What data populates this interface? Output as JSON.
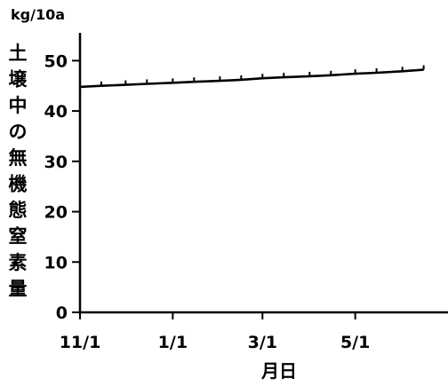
{
  "chart_data": {
    "type": "line",
    "title": "",
    "unit_label": "kg/10a",
    "xlabel": "月日",
    "ylabel": "土壌中の無機態窒素量",
    "x_ticks": [
      "11/1",
      "1/1",
      "3/1",
      "5/1"
    ],
    "y_ticks": [
      "0",
      "10",
      "20",
      "30",
      "40",
      "50"
    ],
    "ylim": [
      0,
      55
    ],
    "grid": false,
    "series": [
      {
        "x": [
          "11/1",
          "11/15",
          "12/1",
          "12/15",
          "1/1",
          "1/15",
          "2/1",
          "2/15",
          "3/1",
          "3/15",
          "4/1",
          "4/15",
          "5/1",
          "5/15",
          "6/1",
          "6/15"
        ],
        "values": [
          44.8,
          45.0,
          45.2,
          45.4,
          45.6,
          45.8,
          46.0,
          46.2,
          46.5,
          46.7,
          46.9,
          47.1,
          47.4,
          47.6,
          47.9,
          48.2
        ]
      }
    ],
    "line_color": "#000000"
  }
}
